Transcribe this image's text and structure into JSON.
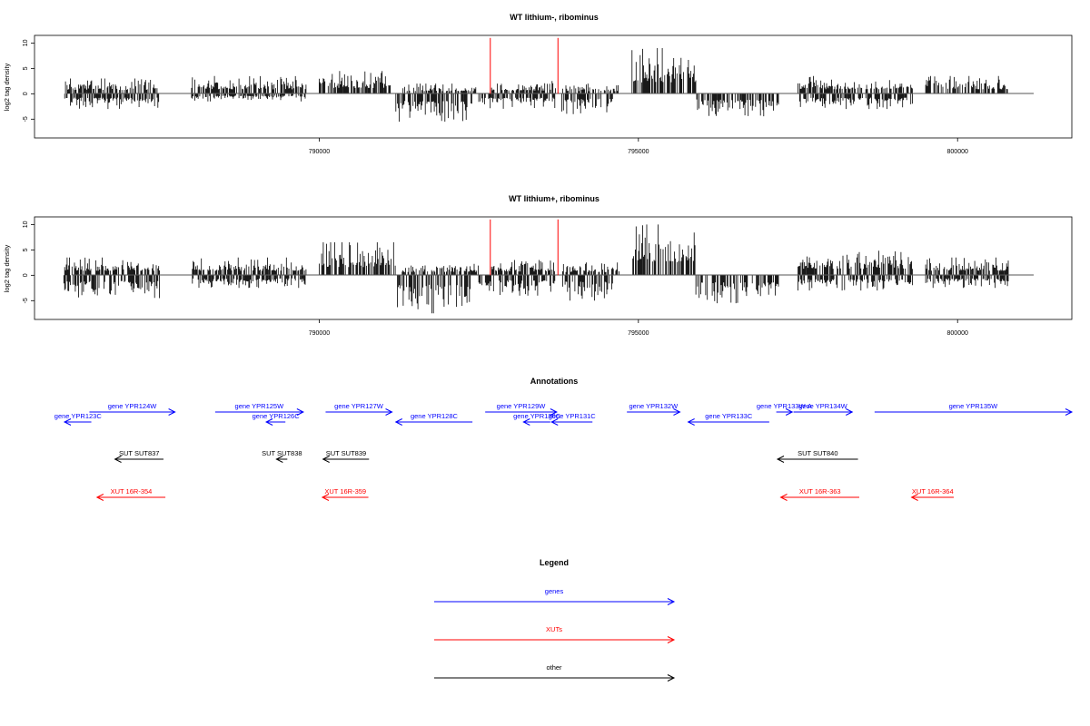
{
  "chart_data": [
    {
      "type": "bar",
      "title": "WT lithium-, ribominus",
      "ylabel": "log2 tag density",
      "xlabel": "",
      "xlim": [
        785540,
        801790
      ],
      "ylim": [
        -8.7,
        11.5
      ],
      "yticks": [
        -5,
        0,
        5,
        10
      ],
      "xticks": [
        790000,
        795000,
        800000
      ],
      "grid": false,
      "baseline": 0,
      "density_profile": {
        "plus": [
          [
            786000,
            787500,
            3
          ],
          [
            788000,
            789800,
            3.5
          ],
          [
            790000,
            791200,
            4.5
          ],
          [
            791300,
            792500,
            2
          ],
          [
            792700,
            793700,
            2.5
          ],
          [
            793800,
            794700,
            2
          ],
          [
            794900,
            795900,
            9
          ],
          [
            797500,
            799300,
            3.5
          ],
          [
            799500,
            800800,
            3.5
          ]
        ],
        "minus": [
          [
            786000,
            787500,
            -3
          ],
          [
            788000,
            789800,
            -1.5
          ],
          [
            791200,
            792400,
            -5.5
          ],
          [
            792500,
            793700,
            -3
          ],
          [
            793800,
            794600,
            -4
          ],
          [
            795900,
            797200,
            -4.5
          ],
          [
            797500,
            799300,
            -3
          ]
        ]
      },
      "peaks": [
        {
          "x": 792680,
          "y": 11,
          "color": "#ff0000"
        },
        {
          "x": 793740,
          "y": 11,
          "color": "#ff0000"
        }
      ]
    },
    {
      "type": "bar",
      "title": "WT lithium+, ribominus",
      "ylabel": "log2 tag density",
      "xlabel": "",
      "xlim": [
        785540,
        801790
      ],
      "ylim": [
        -8.7,
        11.5
      ],
      "yticks": [
        -5,
        0,
        5,
        10
      ],
      "xticks": [
        790000,
        795000,
        800000
      ],
      "grid": false,
      "baseline": 0,
      "density_profile": {
        "plus": [
          [
            786000,
            787500,
            3.5
          ],
          [
            788000,
            789800,
            3.5
          ],
          [
            790000,
            791200,
            6.5
          ],
          [
            791300,
            792500,
            2.5
          ],
          [
            792700,
            793700,
            3
          ],
          [
            793800,
            794700,
            2.5
          ],
          [
            794900,
            795900,
            10
          ],
          [
            797500,
            799300,
            5
          ],
          [
            799500,
            800800,
            3.5
          ]
        ],
        "minus": [
          [
            786000,
            787500,
            -4.5
          ],
          [
            788000,
            789800,
            -2.5
          ],
          [
            791200,
            792400,
            -7.5
          ],
          [
            792500,
            793700,
            -4
          ],
          [
            793800,
            794600,
            -5
          ],
          [
            795900,
            797200,
            -5.5
          ],
          [
            797500,
            799300,
            -3
          ],
          [
            799500,
            800800,
            -2.5
          ]
        ]
      },
      "peaks": [
        {
          "x": 792680,
          "y": 11,
          "color": "#ff0000"
        },
        {
          "x": 793740,
          "y": 11,
          "color": "#ff0000"
        }
      ]
    },
    {
      "type": "annotation-track",
      "title": "Annotations",
      "xlim": [
        785540,
        801790
      ],
      "features": [
        {
          "label": "gene YPR124W",
          "class": "gene",
          "strand": "+",
          "start": 786400,
          "end": 787740,
          "row": 0
        },
        {
          "label": "gene YPR123C",
          "class": "gene",
          "strand": "-",
          "start": 786010,
          "end": 786430,
          "row": 1
        },
        {
          "label": "gene YPR125W",
          "class": "gene",
          "strand": "+",
          "start": 788370,
          "end": 789750,
          "row": 0
        },
        {
          "label": "gene YPR126C",
          "class": "gene",
          "strand": "-",
          "start": 789170,
          "end": 789470,
          "row": 1
        },
        {
          "label": "gene YPR127W",
          "class": "gene",
          "strand": "+",
          "start": 790100,
          "end": 791140,
          "row": 0
        },
        {
          "label": "gene YPR128C",
          "class": "gene",
          "strand": "-",
          "start": 791200,
          "end": 792400,
          "row": 1
        },
        {
          "label": "gene YPR129W",
          "class": "gene",
          "strand": "+",
          "start": 792600,
          "end": 793720,
          "row": 0
        },
        {
          "label": "gene YPR130C",
          "class": "gene",
          "strand": "-",
          "start": 793200,
          "end": 793620,
          "row": 1
        },
        {
          "label": "gene YPR131C",
          "class": "gene",
          "strand": "-",
          "start": 793640,
          "end": 794280,
          "row": 1
        },
        {
          "label": "gene YPR132W",
          "class": "gene",
          "strand": "+",
          "start": 794820,
          "end": 795650,
          "row": 0
        },
        {
          "label": "gene YPR133C",
          "class": "gene",
          "strand": "-",
          "start": 795780,
          "end": 797050,
          "row": 1
        },
        {
          "label": "gene YPR133W-A",
          "class": "gene",
          "strand": "+",
          "start": 797160,
          "end": 797410,
          "row": 0
        },
        {
          "label": "gene YPR134W",
          "class": "gene",
          "strand": "+",
          "start": 797430,
          "end": 798350,
          "row": 0
        },
        {
          "label": "gene YPR135W",
          "class": "gene",
          "strand": "+",
          "start": 798700,
          "end": 801790,
          "row": 0
        },
        {
          "label": "SUT SUT837",
          "class": "other",
          "strand": "-",
          "start": 786800,
          "end": 787560,
          "row": 2
        },
        {
          "label": "SUT SUT838",
          "class": "other",
          "strand": "-",
          "start": 789330,
          "end": 789500,
          "row": 2
        },
        {
          "label": "SUT SUT839",
          "class": "other",
          "strand": "-",
          "start": 790060,
          "end": 790780,
          "row": 2
        },
        {
          "label": "SUT SUT840",
          "class": "other",
          "strand": "-",
          "start": 797180,
          "end": 798440,
          "row": 2
        },
        {
          "label": "XUT 16R-354",
          "class": "xut",
          "strand": "-",
          "start": 786520,
          "end": 787590,
          "row": 3
        },
        {
          "label": "XUT 16R-359",
          "class": "xut",
          "strand": "-",
          "start": 790050,
          "end": 790770,
          "row": 3
        },
        {
          "label": "XUT 16R-363",
          "class": "xut",
          "strand": "-",
          "start": 797230,
          "end": 798460,
          "row": 3
        },
        {
          "label": "XUT 16R-364",
          "class": "xut",
          "strand": "-",
          "start": 799280,
          "end": 799940,
          "row": 3
        }
      ]
    }
  ],
  "legend": {
    "title": "Legend",
    "placement": "bottom-center",
    "entries": [
      {
        "label": "genes",
        "color": "#0000ff"
      },
      {
        "label": "XUTs",
        "color": "#ff0000"
      },
      {
        "label": "other",
        "color": "#000000"
      }
    ]
  },
  "colors": {
    "gene": "#0000ff",
    "xut": "#ff0000",
    "other": "#000000",
    "axis": "#000000",
    "peak": "#ff0000"
  }
}
